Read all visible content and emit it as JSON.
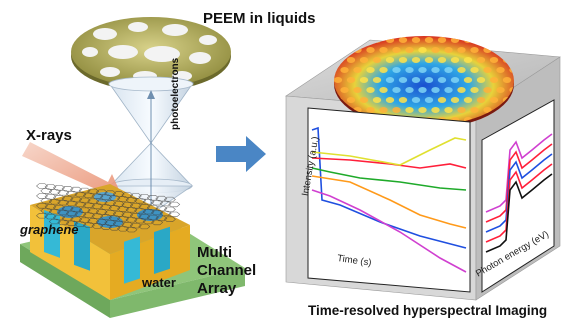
{
  "labels": {
    "peem": "PEEM in liquids",
    "xrays": "X-rays",
    "photoelectrons": "photoelectrons",
    "graphene": "graphene",
    "water": "water",
    "multi_channel_array": "Multi Channel Array",
    "time_resolved": "Time-resolved hyperspectral Imaging"
  },
  "axes": {
    "intensity": "Intensity (a.u.)",
    "time": "Time (s)",
    "photon_energy": "Photon energy (eV)"
  },
  "icons": {
    "process_arrow": "arrow-right-icon",
    "xray_beam": "arrow-beam-icon"
  },
  "colors": {
    "arrow": "#4a86c5",
    "chip_yellow": "#f2c13a",
    "water_cyan": "#35b9d6",
    "cube_face": "#c9c9c9",
    "series": [
      "#1f4fe0",
      "#ff1f3a",
      "#1faa2a",
      "#ff9a1a",
      "#d040d0",
      "#e0e030",
      "#111111"
    ]
  }
}
